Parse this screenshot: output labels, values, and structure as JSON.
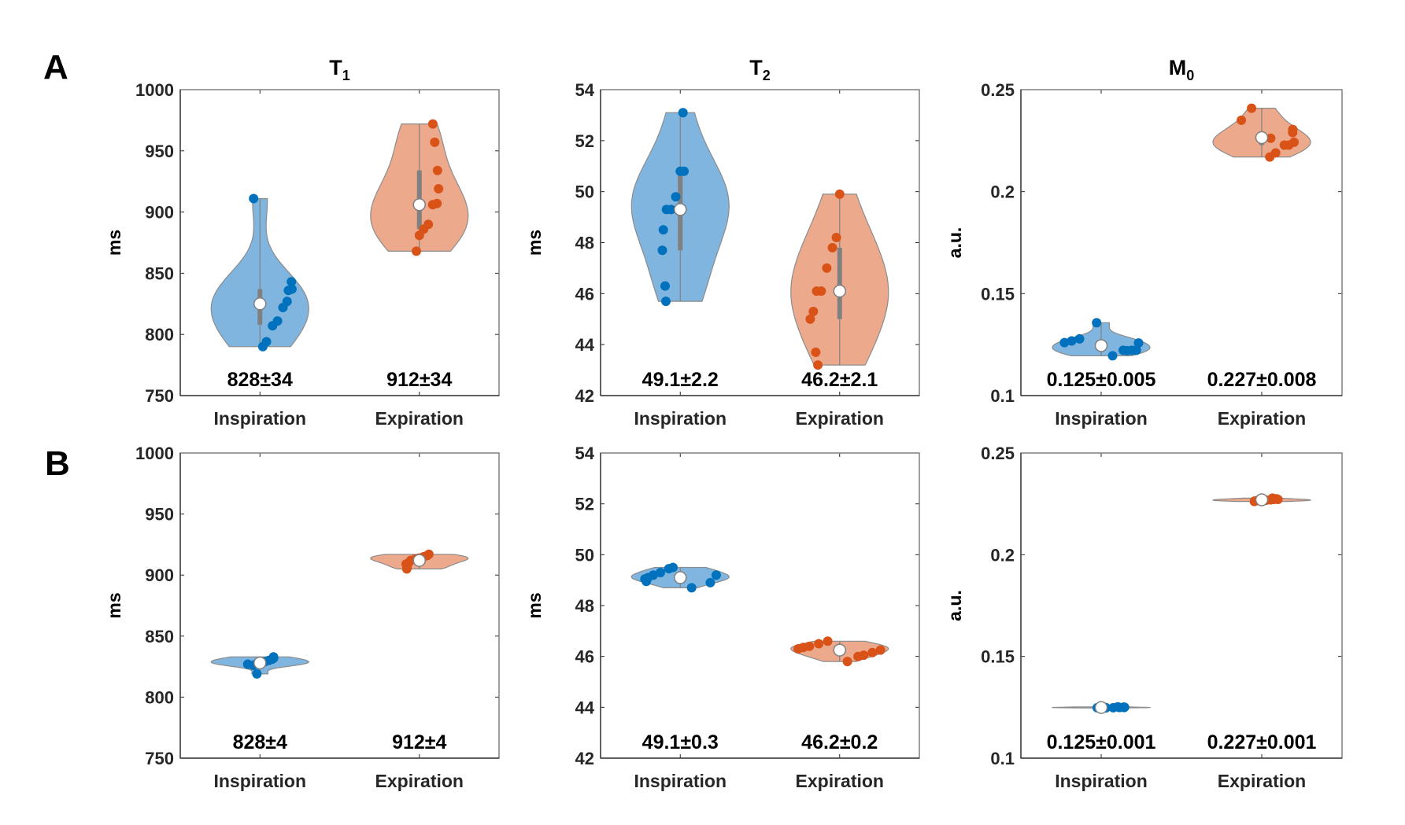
{
  "panel_letters": [
    "A",
    "B"
  ],
  "colors": {
    "inspiration_fill": "#7FB5DE",
    "inspiration_dot": "#0072BD",
    "expiration_fill": "#ECA98C",
    "expiration_dot": "#D95319",
    "box": "#808080",
    "median_fill": "#FFFFFF"
  },
  "chart_data": [
    {
      "type": "violin",
      "row": "A",
      "title": "T",
      "title_sub": "1",
      "ylabel": "ms",
      "ylim": [
        750,
        1000
      ],
      "yticks": [
        750,
        800,
        850,
        900,
        950,
        1000
      ],
      "ytick_labels": [
        "750",
        "800",
        "850",
        "900",
        "950",
        "1000"
      ],
      "categories": [
        "Inspiration",
        "Expiration"
      ],
      "series": [
        {
          "name": "Inspiration",
          "values": [
            911,
            843,
            837,
            836,
            827,
            822,
            811,
            807,
            794,
            790
          ],
          "median": 825,
          "q1": 808,
          "q3": 837,
          "stat_label": "828±34"
        },
        {
          "name": "Expiration",
          "values": [
            972,
            957,
            934,
            919,
            907,
            906,
            890,
            886,
            881,
            868
          ],
          "median": 906,
          "q1": 886,
          "q3": 934,
          "stat_label": "912±34"
        }
      ]
    },
    {
      "type": "violin",
      "row": "A",
      "title": "T",
      "title_sub": "2",
      "ylabel": "ms",
      "ylim": [
        42,
        54
      ],
      "yticks": [
        42,
        44,
        46,
        48,
        50,
        52,
        54
      ],
      "ytick_labels": [
        "42",
        "44",
        "46",
        "48",
        "50",
        "52",
        "54"
      ],
      "categories": [
        "Inspiration",
        "Expiration"
      ],
      "series": [
        {
          "name": "Inspiration",
          "values": [
            53.1,
            50.8,
            50.8,
            49.8,
            49.3,
            49.3,
            48.5,
            47.7,
            46.3,
            45.7
          ],
          "median": 49.3,
          "q1": 47.7,
          "q3": 50.8,
          "stat_label": "49.1±2.2"
        },
        {
          "name": "Expiration",
          "values": [
            49.9,
            48.2,
            47.8,
            47.0,
            46.1,
            46.1,
            45.3,
            45.0,
            43.7,
            43.2
          ],
          "median": 46.1,
          "q1": 45.0,
          "q3": 47.8,
          "stat_label": "46.2±2.1"
        }
      ]
    },
    {
      "type": "violin",
      "row": "A",
      "title": "M",
      "title_sub": "0",
      "ylabel": "a.u.",
      "ylim": [
        0.1,
        0.25
      ],
      "yticks": [
        0.1,
        0.15,
        0.2,
        0.25
      ],
      "ytick_labels": [
        "0.1",
        "0.15",
        "0.2",
        "0.25"
      ],
      "categories": [
        "Inspiration",
        "Expiration"
      ],
      "series": [
        {
          "name": "Inspiration",
          "values": [
            0.1357,
            0.1278,
            0.1268,
            0.126,
            0.1258,
            0.1222,
            0.1222,
            0.122,
            0.1222,
            0.1195
          ],
          "median": 0.1245,
          "q1": 0.1222,
          "q3": 0.1268,
          "stat_label": "0.125±0.005"
        },
        {
          "name": "Expiration",
          "values": [
            0.2409,
            0.235,
            0.2305,
            0.229,
            0.2242,
            0.2228,
            0.2228,
            0.219,
            0.217,
            0.2262
          ],
          "median": 0.2265,
          "q1": 0.2228,
          "q3": 0.2295,
          "stat_label": "0.227±0.008"
        }
      ]
    },
    {
      "type": "violin",
      "row": "B",
      "title": "",
      "title_sub": "",
      "ylabel": "ms",
      "ylim": [
        750,
        1000
      ],
      "yticks": [
        750,
        800,
        850,
        900,
        950,
        1000
      ],
      "ytick_labels": [
        "750",
        "800",
        "850",
        "900",
        "950",
        "1000"
      ],
      "categories": [
        "Inspiration",
        "Expiration"
      ],
      "series": [
        {
          "name": "Inspiration",
          "values": [
            833,
            832,
            831,
            830,
            829,
            828,
            827,
            826,
            827,
            819
          ],
          "median": 828,
          "q1": 827,
          "q3": 831,
          "stat_label": "828±4"
        },
        {
          "name": "Expiration",
          "values": [
            917,
            916,
            915,
            914,
            913,
            912,
            910,
            909,
            906,
            905
          ],
          "median": 912,
          "q1": 909,
          "q3": 915,
          "stat_label": "912±4"
        }
      ]
    },
    {
      "type": "violin",
      "row": "B",
      "title": "",
      "title_sub": "",
      "ylabel": "ms",
      "ylim": [
        42,
        54
      ],
      "yticks": [
        42,
        44,
        46,
        48,
        50,
        52,
        54
      ],
      "ytick_labels": [
        "42",
        "44",
        "46",
        "48",
        "50",
        "52",
        "54"
      ],
      "categories": [
        "Inspiration",
        "Expiration"
      ],
      "series": [
        {
          "name": "Inspiration",
          "values": [
            49.5,
            49.45,
            49.3,
            49.2,
            49.1,
            49.05,
            48.95,
            48.9,
            49.2,
            48.7
          ],
          "median": 49.1,
          "q1": 48.95,
          "q3": 49.3,
          "stat_label": "49.1±0.3"
        },
        {
          "name": "Expiration",
          "values": [
            46.6,
            46.5,
            46.4,
            46.35,
            46.3,
            46.25,
            46.15,
            46.05,
            46.0,
            45.8
          ],
          "median": 46.25,
          "q1": 46.05,
          "q3": 46.4,
          "stat_label": "46.2±0.2"
        }
      ]
    },
    {
      "type": "violin",
      "row": "B",
      "title": "",
      "title_sub": "",
      "ylabel": "a.u.",
      "ylim": [
        0.1,
        0.25
      ],
      "yticks": [
        0.1,
        0.15,
        0.2,
        0.25
      ],
      "ytick_labels": [
        "0.1",
        "0.15",
        "0.2",
        "0.25"
      ],
      "categories": [
        "Inspiration",
        "Expiration"
      ],
      "series": [
        {
          "name": "Inspiration",
          "values": [
            0.1252,
            0.1251,
            0.125,
            0.1249,
            0.1249,
            0.1248,
            0.1247,
            0.1249,
            0.1251,
            0.1248
          ],
          "median": 0.1249,
          "q1": 0.1248,
          "q3": 0.1251,
          "stat_label": "0.125±0.001"
        },
        {
          "name": "Expiration",
          "values": [
            0.2278,
            0.2275,
            0.2272,
            0.2272,
            0.227,
            0.2268,
            0.2267,
            0.2266,
            0.2264,
            0.2262
          ],
          "median": 0.227,
          "q1": 0.2266,
          "q3": 0.2272,
          "stat_label": "0.227±0.001"
        }
      ]
    }
  ]
}
